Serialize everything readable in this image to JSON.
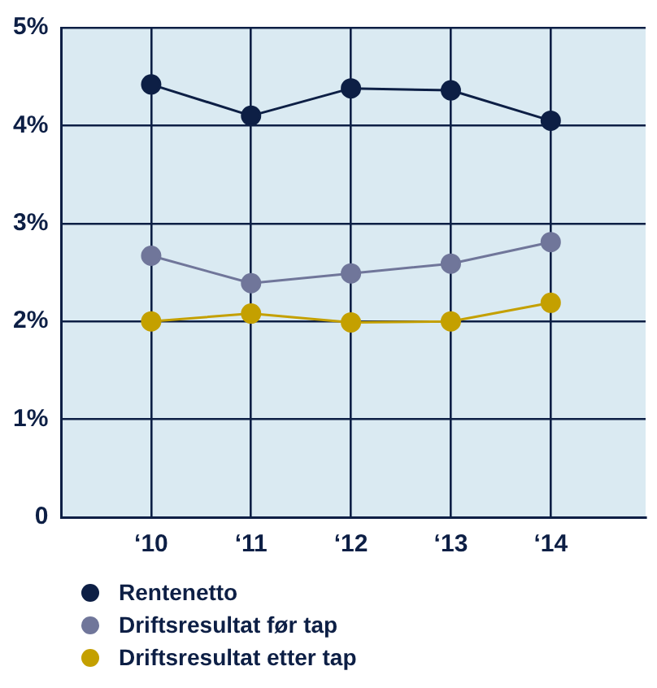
{
  "chart_data": {
    "type": "line",
    "categories": [
      "‘10",
      "‘11",
      "‘12",
      "‘13",
      "‘14"
    ],
    "series": [
      {
        "name": "Rentenetto",
        "color": "#0d1f45",
        "values": [
          4.42,
          4.1,
          4.38,
          4.36,
          4.05
        ]
      },
      {
        "name": "Driftsresultat før tap",
        "color": "#70769a",
        "values": [
          2.67,
          2.39,
          2.49,
          2.59,
          2.81
        ]
      },
      {
        "name": "Driftsresultat etter tap",
        "color": "#c4a000",
        "values": [
          2.0,
          2.08,
          1.99,
          2.0,
          2.19
        ]
      }
    ],
    "ylim": [
      0,
      5
    ],
    "yticks": [
      0,
      {
        "value": 1,
        "label": "1%"
      },
      {
        "value": 2,
        "label": "2%"
      },
      {
        "value": 3,
        "label": "3%"
      },
      {
        "value": 4,
        "label": "4%"
      },
      {
        "value": 5,
        "label": "5%"
      }
    ],
    "grid": true,
    "legend": "bottom",
    "marker": "circle",
    "line_style": "solid"
  }
}
